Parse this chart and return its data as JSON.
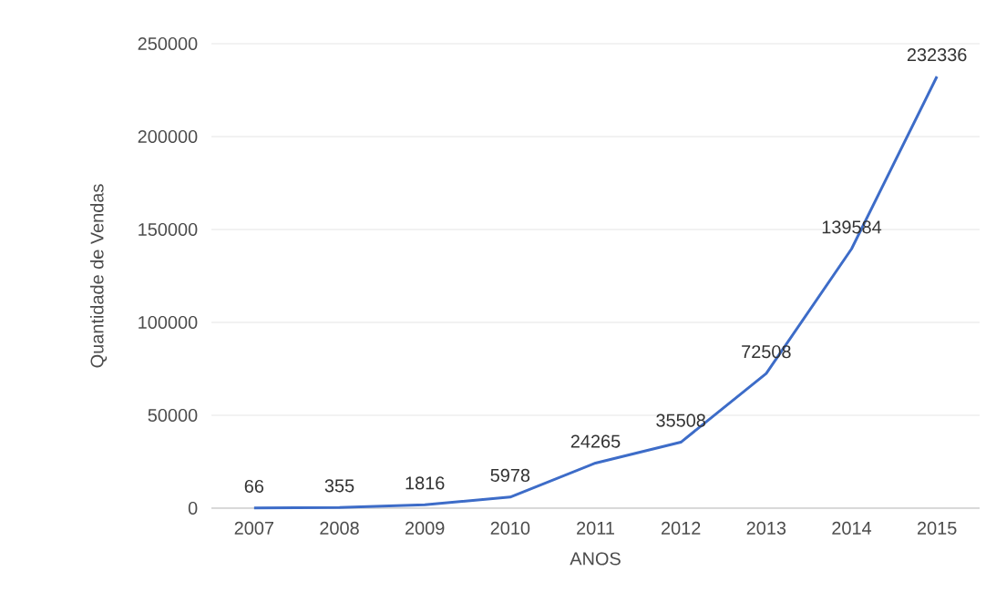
{
  "chart_data": {
    "type": "line",
    "xlabel": "ANOS",
    "ylabel": "Quantidade de Vendas",
    "categories": [
      "2007",
      "2008",
      "2009",
      "2010",
      "2011",
      "2012",
      "2013",
      "2014",
      "2015"
    ],
    "values": [
      66,
      355,
      1816,
      5978,
      24265,
      35508,
      72508,
      139584,
      232336
    ],
    "color": "#3d6cc8",
    "ylim": [
      0,
      250000
    ],
    "yticks": [
      0,
      50000,
      100000,
      150000,
      200000,
      250000
    ],
    "grid": "y",
    "data_labels": true,
    "marker": "none",
    "line_style": "solid"
  }
}
